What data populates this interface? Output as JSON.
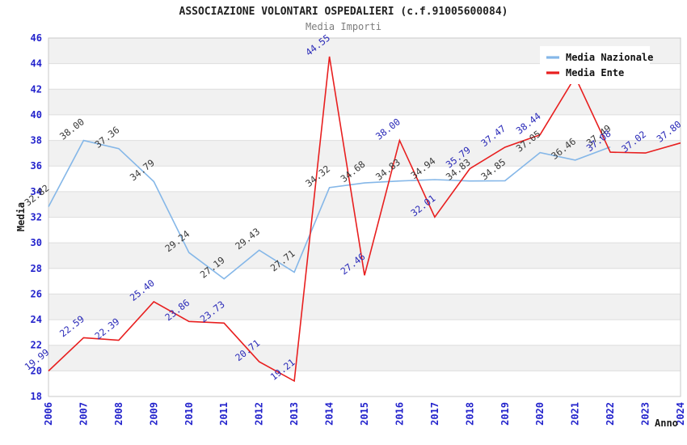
{
  "header": {
    "title": "ASSOCIAZIONE VOLONTARI OSPEDALIERI (c.f.91005600084)",
    "subtitle": "Media Importi"
  },
  "chart_data": {
    "type": "line",
    "title": "ASSOCIAZIONE VOLONTARI OSPEDALIERI (c.f.91005600084)",
    "subtitle": "Media Importi",
    "xlabel": "Anno",
    "ylabel": "Media",
    "x": [
      2006,
      2007,
      2008,
      2009,
      2010,
      2011,
      2012,
      2013,
      2014,
      2015,
      2016,
      2017,
      2018,
      2019,
      2020,
      2021,
      2022,
      2023,
      2024
    ],
    "ylim": [
      18,
      46
    ],
    "yticks": [
      18,
      20,
      22,
      24,
      26,
      28,
      30,
      32,
      34,
      36,
      38,
      40,
      42,
      44,
      46
    ],
    "grid": "horizontal-bands",
    "legend_position": "top-right",
    "series": [
      {
        "name": "Media Nazionale",
        "color": "#85b7e8",
        "label_color": "#3a3a3a",
        "values": [
          32.82,
          38.0,
          37.36,
          34.79,
          29.24,
          27.19,
          29.43,
          27.71,
          34.32,
          34.68,
          34.83,
          34.94,
          34.83,
          34.85,
          37.05,
          36.46,
          37.49,
          null,
          null
        ],
        "labels": [
          "32.82",
          "38.00",
          "37.36",
          "34.79",
          "29.24",
          "27.19",
          "29.43",
          "27.71",
          "34.32",
          "34.68",
          "34.83",
          "34.94",
          "34.83",
          "34.85",
          "37.05",
          "36.46",
          "37.49",
          null,
          null
        ]
      },
      {
        "name": "Media Ente",
        "color": "#e81f1f",
        "label_color": "#2a2ab8",
        "values": [
          19.99,
          22.59,
          22.39,
          25.4,
          23.86,
          23.73,
          20.71,
          19.21,
          44.55,
          27.46,
          38.0,
          32.01,
          35.79,
          37.47,
          38.44,
          42.97,
          37.08,
          37.02,
          37.8
        ],
        "labels": [
          "19.99",
          "22.59",
          "22.39",
          "25.40",
          "23.86",
          "23.73",
          "20.71",
          "19.21",
          "44.55",
          "27.46",
          "38.00",
          "32.01",
          "35.79",
          "37.47",
          "38.44",
          null,
          "37.08",
          "37.02",
          "37.80"
        ]
      }
    ],
    "colors": {
      "tick_label": "#2323cc",
      "band_gray": "#f1f1f1",
      "grid_line": "#dedede",
      "plot_border": "#c9c9c9",
      "axis_title": "#1a1a1a"
    }
  }
}
